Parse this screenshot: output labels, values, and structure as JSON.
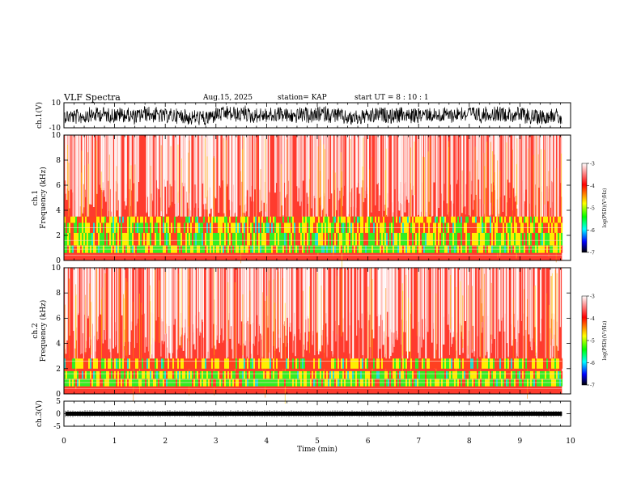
{
  "header": {
    "title": "VLF Spectra",
    "date": "Aug.15, 2025",
    "station": "station= KAP",
    "start_ut": "start  UT =   8  : 10 : 1"
  },
  "chart_data": [
    {
      "type": "line",
      "ylabel": "ch.1(V)",
      "ylim": [
        -10,
        10
      ],
      "yticks": [
        "10",
        "-10"
      ],
      "xlim": [
        0,
        10
      ],
      "x_end": 9.83,
      "description_of_signal": ""
    },
    {
      "type": "heatmap",
      "ylabel_line1": "ch.1",
      "ylabel_line2": "Frequency (kHz)",
      "ylim": [
        0,
        10
      ],
      "yticks": [
        "0",
        "2",
        "4",
        "6",
        "8",
        "10"
      ],
      "xlim": [
        0,
        10
      ],
      "colorbar": {
        "range": [
          -7,
          -3
        ],
        "ticks": [
          "-3",
          "-4",
          "-5",
          "-6",
          "-7"
        ],
        "label": "log(PSD)(V²/Hz)",
        "colors": [
          "#ffffff",
          "#ff0000",
          "#ffff00",
          "#00ff00",
          "#00ffff",
          "#0000ff",
          "#000000"
        ]
      }
    },
    {
      "type": "heatmap",
      "ylabel_line1": "ch.2",
      "ylabel_line2": "Frequency (kHz)",
      "ylim": [
        0,
        10
      ],
      "yticks": [
        "0",
        "2",
        "4",
        "6",
        "8",
        "10"
      ],
      "xlim": [
        0,
        10
      ],
      "colorbar": {
        "range": [
          -7,
          -3
        ],
        "ticks": [
          "-3",
          "-4",
          "-5",
          "-6",
          "-7"
        ],
        "label": "log(PSD)(V²/Hz)",
        "colors": [
          "#ffffff",
          "#ff0000",
          "#ffff00",
          "#00ff00",
          "#00ffff",
          "#0000ff",
          "#000000"
        ]
      }
    },
    {
      "type": "line",
      "ylabel": "ch.3(V)",
      "ylim": [
        -5,
        5
      ],
      "yticks": [
        "5",
        "0",
        "-5"
      ],
      "xlim": [
        0,
        10
      ],
      "xticks": [
        "0",
        "1",
        "2",
        "3",
        "4",
        "5",
        "6",
        "7",
        "8",
        "9",
        "10"
      ],
      "xlabel": "Time (min)",
      "level": 0,
      "x_end": 9.83
    }
  ]
}
